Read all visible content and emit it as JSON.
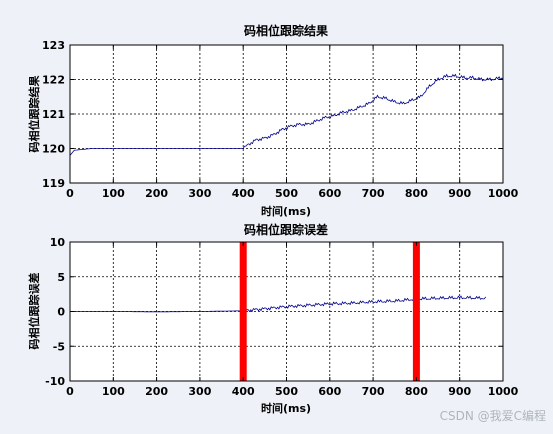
{
  "watermark": "CSDN @我爱C编程",
  "chart_data": [
    {
      "type": "line",
      "title": "码相位跟踪结果",
      "xlabel": "时间(ms)",
      "ylabel": "码相位跟踪结果",
      "xlim": [
        0,
        1000
      ],
      "ylim": [
        119,
        123
      ],
      "xticks": [
        0,
        100,
        200,
        300,
        400,
        500,
        600,
        700,
        800,
        900,
        1000
      ],
      "yticks": [
        119,
        120,
        121,
        122,
        123
      ],
      "grid": true,
      "series": [
        {
          "color": "#00008b",
          "x": [
            0,
            10,
            50,
            100,
            200,
            300,
            400,
            410,
            430,
            450,
            470,
            490,
            510,
            530,
            550,
            570,
            590,
            610,
            630,
            650,
            670,
            690,
            710,
            730,
            750,
            770,
            790,
            810,
            830,
            850,
            870,
            890,
            910,
            930,
            950,
            970,
            1000
          ],
          "y": [
            119.8,
            119.95,
            120.0,
            120.0,
            120.0,
            120.0,
            120.0,
            120.1,
            120.25,
            120.3,
            120.4,
            120.55,
            120.65,
            120.7,
            120.7,
            120.8,
            120.9,
            120.95,
            121.05,
            121.1,
            121.2,
            121.3,
            121.5,
            121.45,
            121.35,
            121.3,
            121.4,
            121.5,
            121.8,
            122.0,
            122.1,
            122.1,
            122.05,
            122.05,
            122.0,
            122.0,
            122.05
          ]
        }
      ]
    },
    {
      "type": "line",
      "title": "码相位跟踪误差",
      "xlabel": "时间(ms)",
      "ylabel": "码相位跟踪误差",
      "xlim": [
        0,
        1000
      ],
      "ylim": [
        -10,
        10
      ],
      "xticks": [
        0,
        100,
        200,
        300,
        400,
        500,
        600,
        700,
        800,
        900,
        1000
      ],
      "yticks": [
        -10,
        -5,
        0,
        5,
        10
      ],
      "grid": true,
      "series": [
        {
          "color": "#00008b",
          "x": [
            0,
            100,
            200,
            300,
            400,
            450,
            500,
            550,
            600,
            650,
            700,
            750,
            800,
            850,
            900,
            960
          ],
          "y": [
            0.0,
            0.0,
            -0.05,
            0.0,
            0.1,
            0.4,
            0.7,
            0.9,
            1.1,
            1.2,
            1.4,
            1.5,
            1.8,
            1.9,
            2.0,
            1.9
          ]
        }
      ],
      "vlines": [
        {
          "x": 400,
          "color": "#ff0000"
        },
        {
          "x": 800,
          "color": "#ff0000"
        }
      ]
    }
  ]
}
